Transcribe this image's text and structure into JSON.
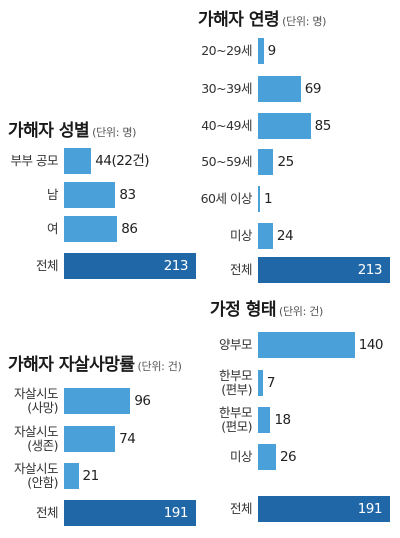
{
  "colors": {
    "bar": "#4aa0d8",
    "total_bar": "#1f67a6",
    "total_value_text": "#ffffff"
  },
  "chart_data": [
    {
      "type": "bar",
      "title": "가해자 성별",
      "unit": "(단위: 명)",
      "categories": [
        "부부 공모",
        "남",
        "여",
        "전체"
      ],
      "values": [
        44,
        83,
        86,
        213
      ],
      "value_labels": [
        "44(22건)",
        "83",
        "86",
        "213"
      ],
      "xlim": [
        0,
        213
      ]
    },
    {
      "type": "bar",
      "title": "가해자 연령",
      "unit": "(단위: 명)",
      "categories": [
        "20~29세",
        "30~39세",
        "40~49세",
        "50~59세",
        "60세 이상",
        "미상",
        "전체"
      ],
      "values": [
        9,
        69,
        85,
        25,
        1,
        24,
        213
      ],
      "value_labels": [
        "9",
        "69",
        "85",
        "25",
        "1",
        "24",
        "213"
      ],
      "xlim": [
        0,
        213
      ]
    },
    {
      "type": "bar",
      "title": "가해자 자살사망률",
      "unit": "(단위: 건)",
      "categories": [
        "자살시도 (사망)",
        "자살시도 (생존)",
        "자살시도 (안함)",
        "전체"
      ],
      "values": [
        96,
        74,
        21,
        191
      ],
      "value_labels": [
        "96",
        "74",
        "21",
        "191"
      ],
      "xlim": [
        0,
        191
      ]
    },
    {
      "type": "bar",
      "title": "가정 형태",
      "unit": "(단위: 건)",
      "categories": [
        "양부모",
        "한부모 (편부)",
        "한부모 (편모)",
        "미상",
        "전체"
      ],
      "values": [
        140,
        7,
        18,
        26,
        191
      ],
      "value_labels": [
        "140",
        "7",
        "18",
        "26",
        "191"
      ],
      "xlim": [
        0,
        191
      ]
    }
  ]
}
